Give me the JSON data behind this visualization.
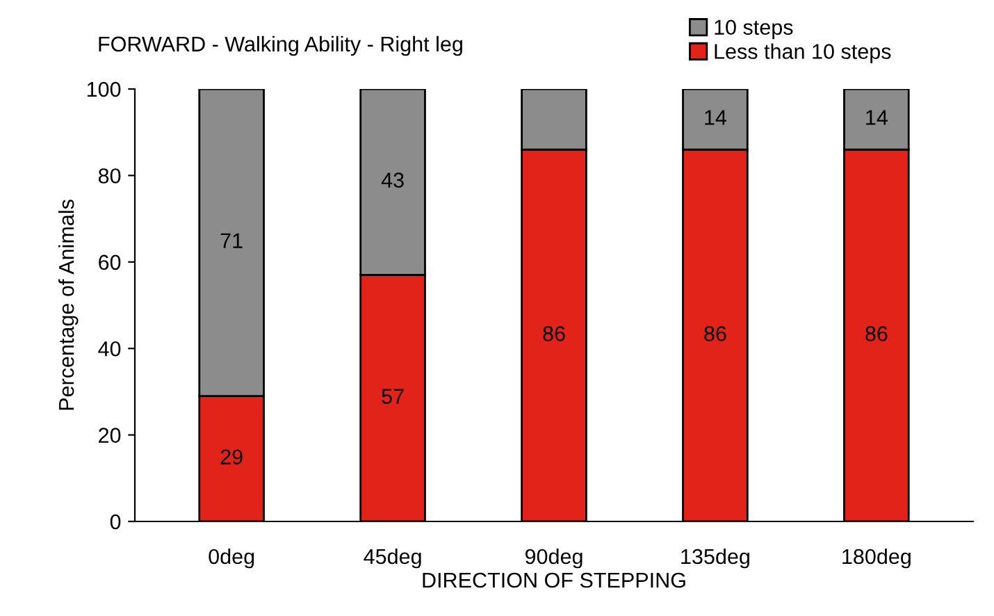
{
  "chart_data": {
    "type": "bar",
    "title": "FORWARD - Walking Ability - Right leg",
    "xlabel": "DIRECTION OF STEPPING",
    "ylabel": "Percentage of Animals",
    "categories": [
      "0deg",
      "45deg",
      "90deg",
      "135deg",
      "180deg"
    ],
    "stacked": true,
    "ylim": [
      0,
      100
    ],
    "yticks": [
      0,
      20,
      40,
      60,
      80,
      100
    ],
    "grid": false,
    "legend": "top right",
    "series": [
      {
        "name": "Less than 10 steps",
        "color": "#e2231a",
        "values": [
          29,
          57,
          86,
          86,
          86
        ],
        "value_labels": [
          "29",
          "57",
          "86",
          "86",
          "86"
        ]
      },
      {
        "name": "10 steps",
        "color": "#8c8c8c",
        "values": [
          71,
          43,
          14,
          14,
          14
        ],
        "value_labels": [
          "71",
          "43",
          null,
          "14",
          "14"
        ]
      }
    ]
  }
}
